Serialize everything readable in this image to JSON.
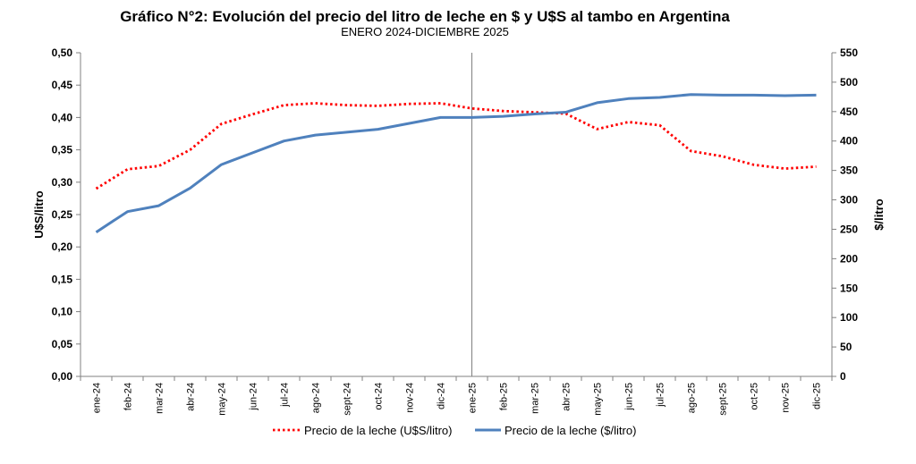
{
  "chart_data": {
    "type": "line",
    "title": "Gráfico N°2: Evolución del precio del litro de leche en $ y U$S al tambo en Argentina",
    "subtitle": "ENERO 2024-DICIEMBRE 2025",
    "categories": [
      "ene-24",
      "feb-24",
      "mar-24",
      "abr-24",
      "may-24",
      "jun-24",
      "jul-24",
      "ago-24",
      "sept-24",
      "oct-24",
      "nov-24",
      "dic-24",
      "ene-25",
      "feb-25",
      "mar-25",
      "abr-25",
      "may-25",
      "jun-25",
      "jul-25",
      "ago-25",
      "sept-25",
      "oct-25",
      "nov-25",
      "dic-25"
    ],
    "y_left": {
      "label": "U$S/litro",
      "range": [
        0,
        0.5
      ],
      "ticks": [
        "0,00",
        "0,05",
        "0,10",
        "0,15",
        "0,20",
        "0,25",
        "0,30",
        "0,35",
        "0,40",
        "0,45",
        "0,50"
      ]
    },
    "y_right": {
      "label": "$/litro",
      "range": [
        0,
        550
      ],
      "ticks": [
        "0",
        "50",
        "100",
        "150",
        "200",
        "250",
        "300",
        "350",
        "400",
        "450",
        "500",
        "550"
      ]
    },
    "series": [
      {
        "name": "Precio de la leche (U$S/litro)",
        "axis": "left",
        "color": "#ff0000",
        "style": "dotted",
        "values": [
          0.29,
          0.32,
          0.325,
          0.35,
          0.39,
          0.405,
          0.419,
          0.422,
          0.419,
          0.418,
          0.421,
          0.422,
          0.414,
          0.41,
          0.408,
          0.406,
          0.382,
          0.393,
          0.388,
          0.348,
          0.34,
          0.327,
          0.321,
          0.324
        ]
      },
      {
        "name": "Precio de la leche ($/litro)",
        "axis": "right",
        "color": "#4f81bd",
        "style": "solid",
        "values": [
          245,
          280,
          290,
          320,
          360,
          380,
          400,
          410,
          415,
          420,
          430,
          440,
          440,
          442,
          446,
          449,
          465,
          472,
          474,
          479,
          478,
          478,
          477,
          478
        ]
      }
    ],
    "grid": false,
    "legend_position": "bottom",
    "annotations": [
      {
        "type": "vertical-line",
        "at": "ene-25"
      }
    ]
  }
}
